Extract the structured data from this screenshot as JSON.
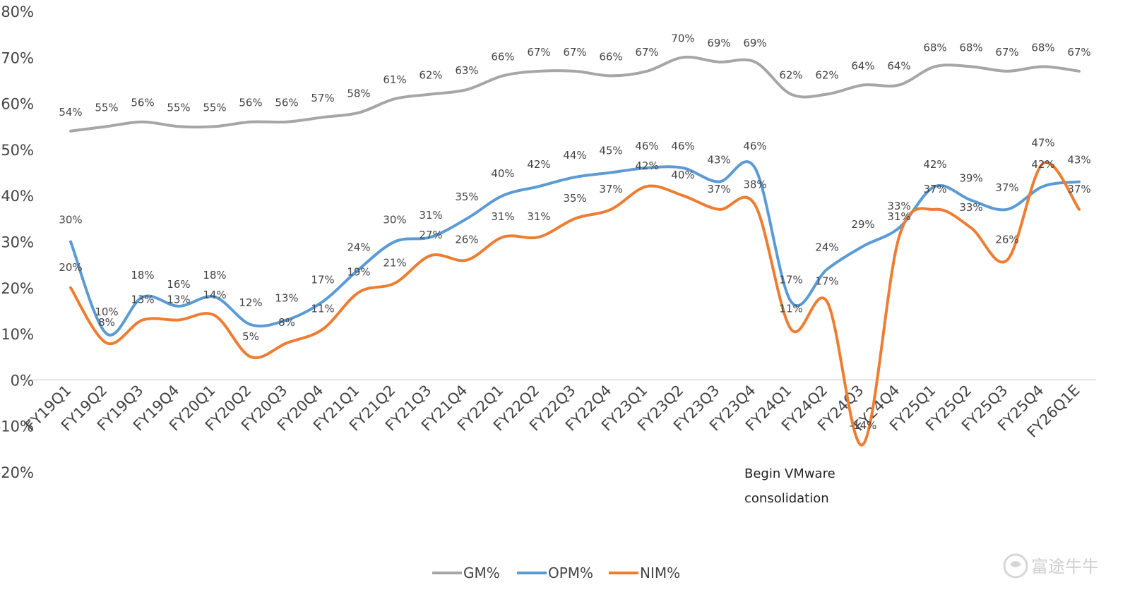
{
  "chart_data": {
    "type": "line",
    "title": "",
    "xlabel": "",
    "ylabel": "",
    "ylim": [
      -20,
      80
    ],
    "ytick_step": 10,
    "ytick_suffix": "%",
    "grid": false,
    "legend_position": "bottom",
    "categories": [
      "FY19Q1",
      "FY19Q2",
      "FY19Q3",
      "FY19Q4",
      "FY20Q1",
      "FY20Q2",
      "FY20Q3",
      "FY20Q4",
      "FY21Q1",
      "FY21Q2",
      "FY21Q3",
      "FY21Q4",
      "FY22Q1",
      "FY22Q2",
      "FY22Q3",
      "FY22Q4",
      "FY23Q1",
      "FY23Q2",
      "FY23Q3",
      "FY23Q4",
      "FY24Q1",
      "FY24Q2",
      "FY24Q3",
      "FY24Q4",
      "FY25Q1",
      "FY25Q2",
      "FY25Q3",
      "FY25Q4",
      "FY26Q1E"
    ],
    "series": [
      {
        "name": "GM%",
        "color": "#a6a6a6",
        "values": [
          54,
          55,
          56,
          55,
          55,
          56,
          56,
          57,
          58,
          61,
          62,
          63,
          66,
          67,
          67,
          66,
          67,
          70,
          69,
          69,
          62,
          62,
          64,
          64,
          68,
          68,
          67,
          68,
          67
        ]
      },
      {
        "name": "OPM%",
        "color": "#5b9bd5",
        "values": [
          30,
          10,
          18,
          16,
          18,
          12,
          13,
          17,
          24,
          30,
          31,
          35,
          40,
          42,
          44,
          45,
          46,
          46,
          43,
          46,
          17,
          24,
          29,
          33,
          42,
          39,
          37,
          42,
          43
        ]
      },
      {
        "name": "NIM%",
        "color": "#ed7d31",
        "values": [
          20,
          8,
          13,
          13,
          14,
          5,
          8,
          11,
          19,
          21,
          27,
          26,
          31,
          31,
          35,
          37,
          42,
          40,
          37,
          38,
          11,
          17,
          -14,
          31,
          37,
          33,
          26,
          47,
          37
        ]
      }
    ],
    "annotations": [
      {
        "text_lines": [
          "Begin VMware",
          "consolidation"
        ],
        "category": "FY24Q1"
      }
    ]
  },
  "watermark": {
    "text": "富途牛牛",
    "icon": "futu-bull-logo-icon"
  }
}
